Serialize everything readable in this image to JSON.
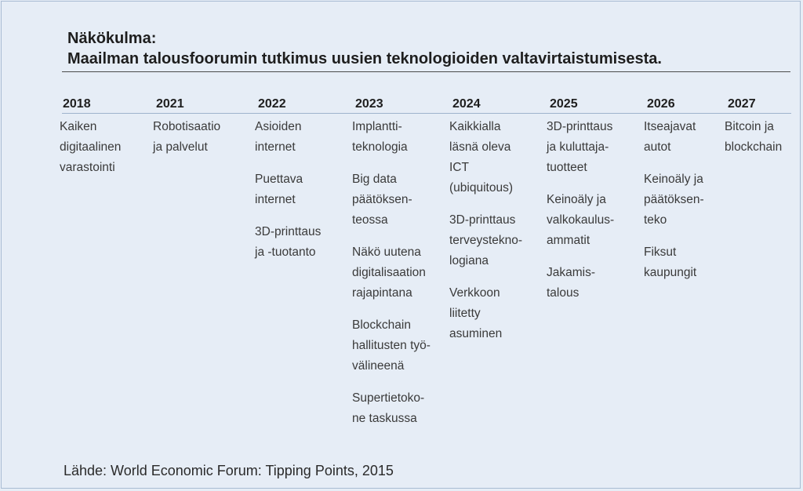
{
  "title": {
    "line1": "Näkökulma:",
    "line2": "Maailman talousfoorumin tutkimus uusien teknologioiden valtavirtaistumisesta."
  },
  "columns": [
    {
      "year": "2018",
      "items": [
        "Kaiken\ndigitaalinen\nvarastointi"
      ]
    },
    {
      "year": "2021",
      "items": [
        "Robotisaatio\nja palvelut"
      ]
    },
    {
      "year": "2022",
      "items": [
        "Asioiden\ninternet",
        "Puettava\ninternet",
        "3D-printtaus\nja -tuotanto"
      ]
    },
    {
      "year": "2023",
      "items": [
        "Implantti-\nteknologia",
        "Big data\npäätöksen-\nteossa",
        "Näkö uutena\ndigitalisaation\nrajapintana",
        "Blockchain\nhallitusten työ-\nvälineenä",
        "Supertietoko-\nne taskussa"
      ]
    },
    {
      "year": "2024",
      "items": [
        "Kaikkialla\nläsnä oleva\nICT\n(ubiquitous)",
        "3D-printtaus\nterveystekno-\nlogiana",
        "Verkkoon\nliitetty\nasuminen"
      ]
    },
    {
      "year": "2025",
      "items": [
        "3D-printtaus\nja kuluttaja-\ntuotteet",
        "Keinoäly ja\nvalkokaulus-\nammatit",
        "Jakamis-\ntalous"
      ]
    },
    {
      "year": "2026",
      "items": [
        "Itseajavat\nautot",
        "Keinoäly ja\npäätöksen-\nteko",
        "Fiksut\nkaupungit"
      ]
    },
    {
      "year": "2027",
      "items": [
        "Bitcoin ja\nblockchain"
      ]
    }
  ],
  "source": "Lähde: World Economic Forum: Tipping Points, 2015",
  "colors": {
    "background": "#e6edf6",
    "border": "#a9bcd3",
    "text": "#2a2a2a"
  }
}
